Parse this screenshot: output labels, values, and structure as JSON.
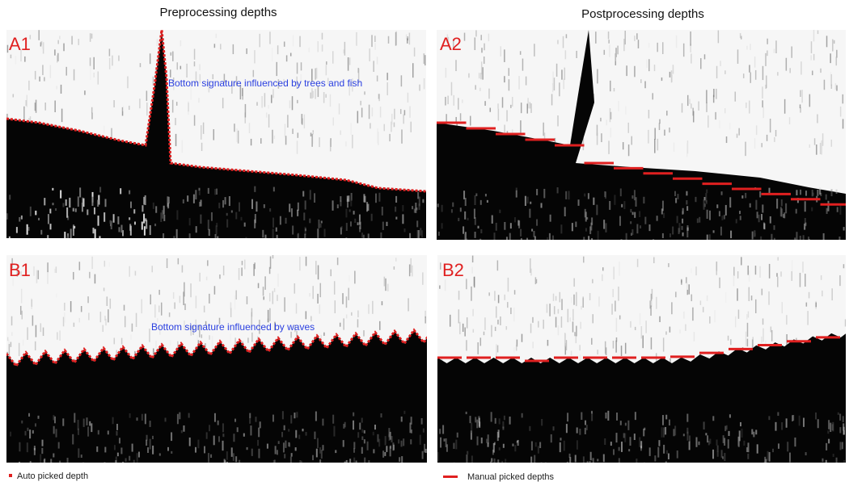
{
  "columns": [
    "Preprocessing depths",
    "Postprocessing depths"
  ],
  "panels": [
    {
      "label": "A1",
      "annotation": "Bottom signature influenced by trees and fish"
    },
    {
      "label": "A2"
    },
    {
      "label": "B1",
      "annotation": "Bottom signature influenced by waves"
    },
    {
      "label": "B2"
    }
  ],
  "legend": [
    "Auto picked depth",
    "Manual picked depths"
  ]
}
